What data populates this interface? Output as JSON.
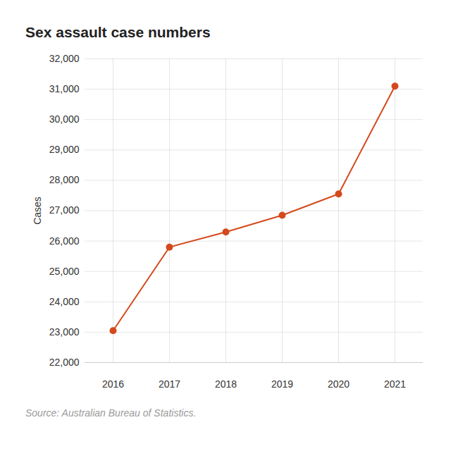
{
  "chart_data": {
    "type": "line",
    "title": "Sex assault case numbers",
    "y_label": "Cases",
    "source": "Source: Australian Bureau of Statistics.",
    "categories": [
      "2016",
      "2017",
      "2018",
      "2019",
      "2020",
      "2021"
    ],
    "values": [
      23050,
      25800,
      26300,
      26850,
      27550,
      31100
    ],
    "color": "#d4491c",
    "marker": "circle",
    "grid": true,
    "ylim": [
      22000,
      32000
    ],
    "yticks": [
      {
        "value": 22000,
        "label": "22,000"
      },
      {
        "value": 23000,
        "label": "23,000"
      },
      {
        "value": 24000,
        "label": "24,000"
      },
      {
        "value": 25000,
        "label": "25,000"
      },
      {
        "value": 26000,
        "label": "26,000"
      },
      {
        "value": 27000,
        "label": "27,000"
      },
      {
        "value": 28000,
        "label": "28,000"
      },
      {
        "value": 29000,
        "label": "29,000"
      },
      {
        "value": 30000,
        "label": "30,000"
      },
      {
        "value": 31000,
        "label": "31,000"
      },
      {
        "value": 32000,
        "label": "32,000"
      }
    ]
  }
}
